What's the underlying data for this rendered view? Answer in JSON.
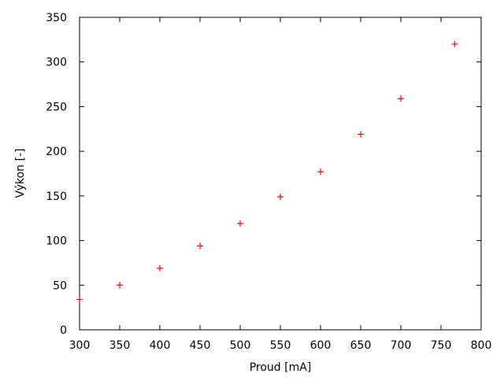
{
  "chart_data": {
    "type": "scatter",
    "title": "",
    "xlabel": "Proud [mA]",
    "ylabel": "Výkon [-]",
    "xlim": [
      300,
      800
    ],
    "ylim": [
      0,
      350
    ],
    "xticks": [
      300,
      350,
      400,
      450,
      500,
      550,
      600,
      650,
      700,
      750,
      800
    ],
    "yticks": [
      0,
      50,
      100,
      150,
      200,
      250,
      300,
      350
    ],
    "grid": false,
    "marker": "plus",
    "color": "#ff0000",
    "points": [
      {
        "x": 300,
        "y": 34
      },
      {
        "x": 350,
        "y": 50
      },
      {
        "x": 400,
        "y": 69
      },
      {
        "x": 450,
        "y": 94
      },
      {
        "x": 500,
        "y": 119
      },
      {
        "x": 550,
        "y": 149
      },
      {
        "x": 600,
        "y": 177
      },
      {
        "x": 650,
        "y": 219
      },
      {
        "x": 700,
        "y": 259
      },
      {
        "x": 767,
        "y": 320
      }
    ]
  }
}
